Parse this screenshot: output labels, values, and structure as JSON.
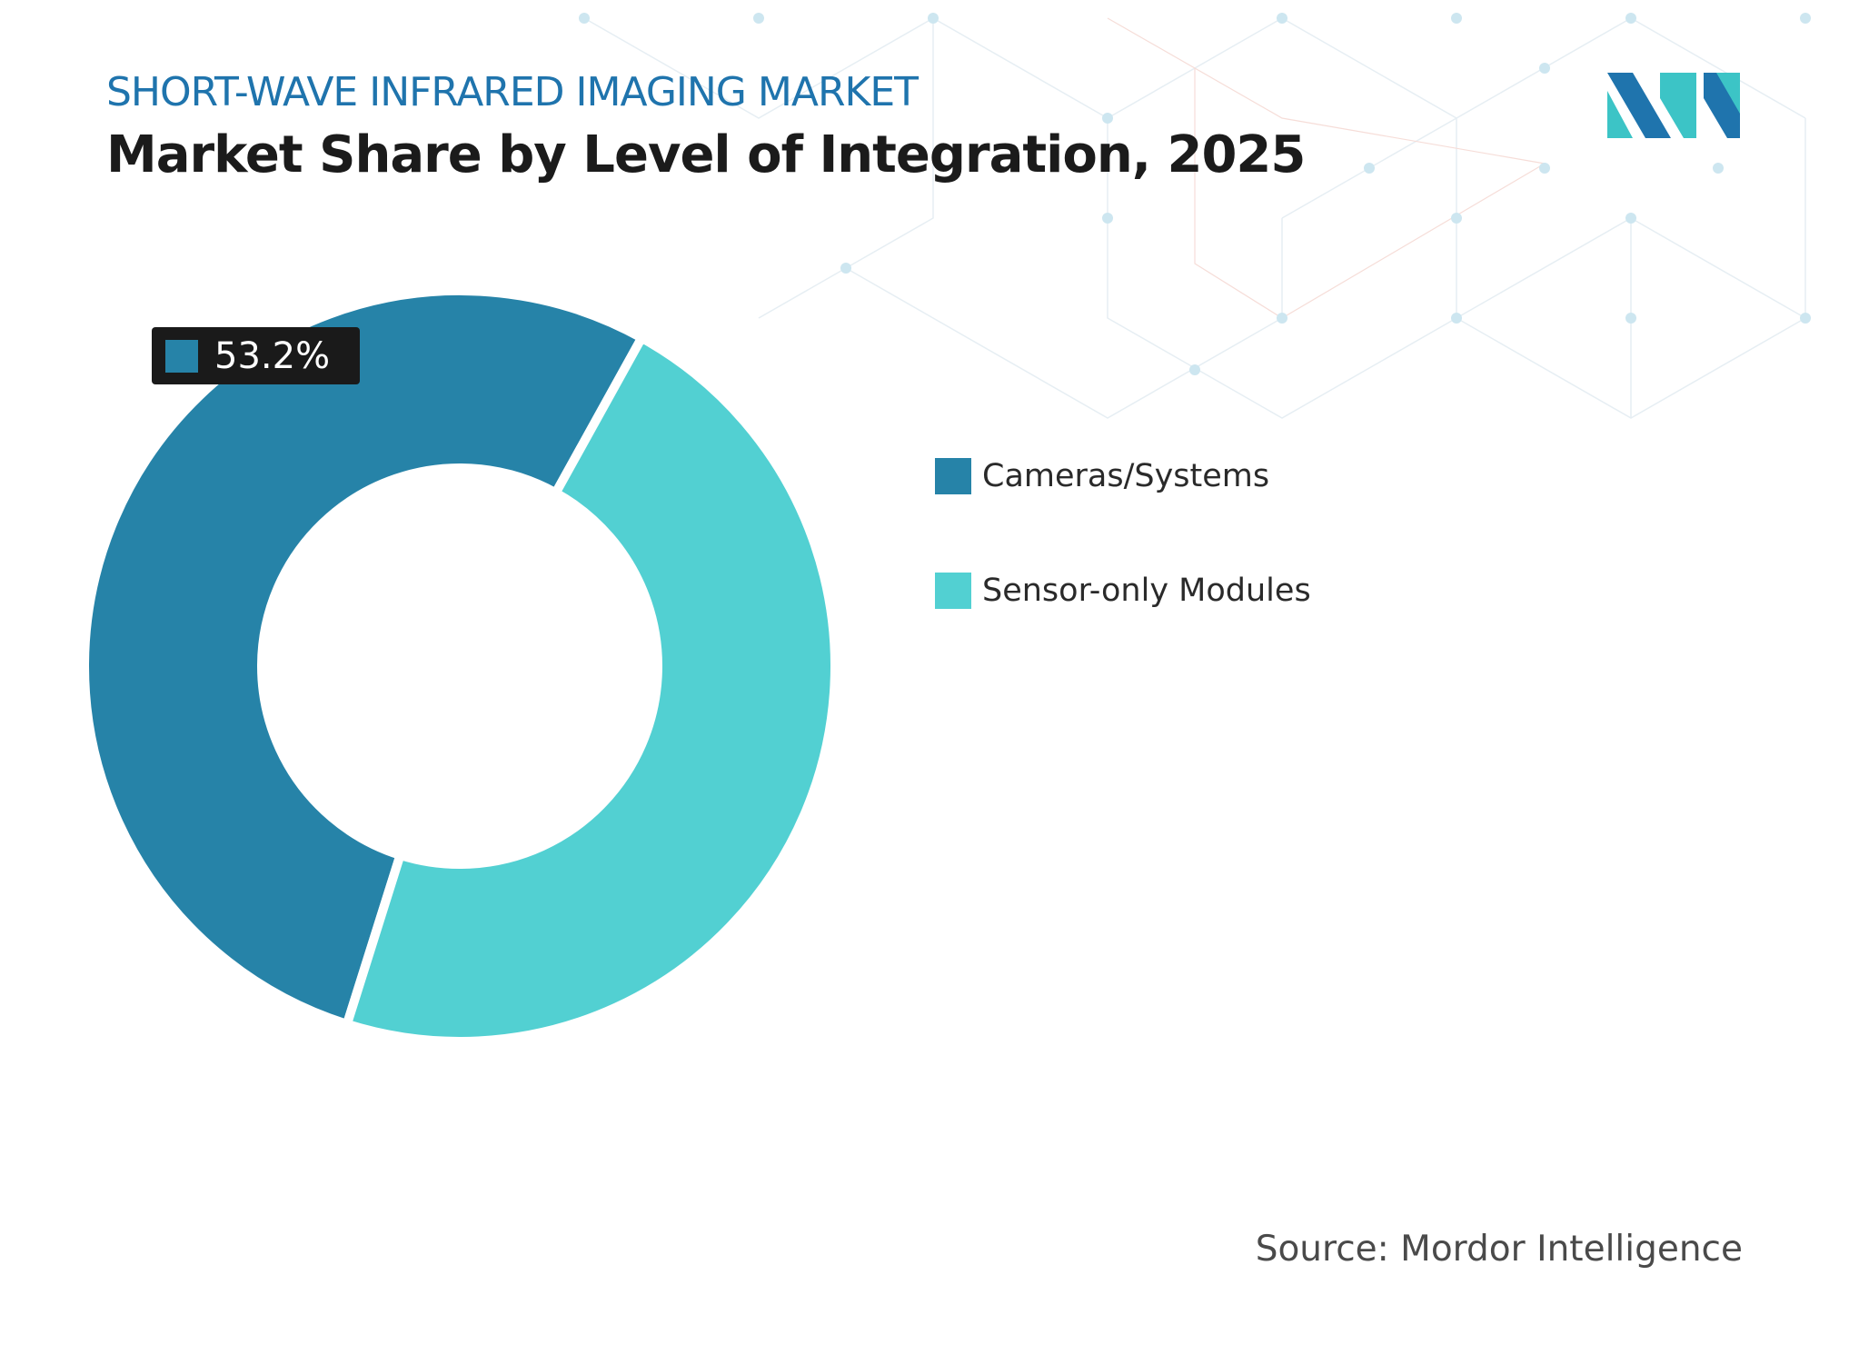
{
  "header": {
    "subtitle": "SHORT-WAVE INFRARED IMAGING MARKET",
    "title": "Market Share by Level of Integration, 2025"
  },
  "chart_data": {
    "type": "pie",
    "variant": "donut",
    "categories": [
      "Cameras/Systems",
      "Sensor-only Modules"
    ],
    "values": [
      53.2,
      46.8
    ],
    "colors": [
      "#2683a8",
      "#52d0d2"
    ],
    "data_labels": [
      {
        "category": "Cameras/Systems",
        "text": "53.2%"
      }
    ],
    "legend": "right"
  },
  "source": "Source: Mordor Intelligence",
  "logo": {
    "name": "mordor-intelligence-logo",
    "colors": [
      "#1f74ad",
      "#3cc4c6"
    ]
  }
}
